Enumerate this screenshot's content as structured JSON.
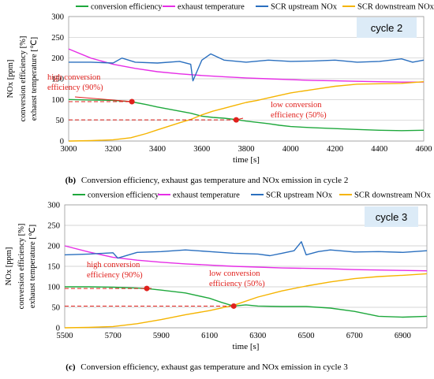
{
  "chart_data": [
    {
      "type": "line",
      "subtitle": "cycle 2",
      "caption_prefix": "(b)",
      "caption_text": "Conversion efficiency, exhaust gas temperature and NOx emission in cycle 2",
      "xlabel": "time [s]",
      "ylabel_lines": [
        "NOx [ppm]",
        "conversion efficiency [%]",
        "exhaust temperature [℃]"
      ],
      "xlim": [
        3000,
        4600
      ],
      "ylim": [
        0,
        300
      ],
      "xticks": [
        "3000",
        "3200",
        "3400",
        "3600",
        "3800",
        "4000",
        "4200",
        "4400",
        "4600"
      ],
      "yticks": [
        "0",
        "50",
        "100",
        "150",
        "200",
        "250",
        "300"
      ],
      "grid": true,
      "legend_position": "top",
      "colors": {
        "conversion efficiency": "#1ea83c",
        "exhaust temperature": "#e62ee6",
        "SCR upstream NOx": "#2a6fbf",
        "SCR downstream NOx": "#f5b400",
        "annotation": "#e0201c"
      },
      "series": [
        {
          "name": "conversion efficiency",
          "x": [
            3000,
            3100,
            3200,
            3280,
            3350,
            3400,
            3500,
            3550,
            3600,
            3650,
            3700,
            3750,
            3800,
            3850,
            3900,
            3950,
            4000,
            4100,
            4200,
            4300,
            4400,
            4500,
            4600
          ],
          "y": [
            100,
            99,
            98,
            95,
            88,
            82,
            72,
            67,
            60,
            57,
            55,
            52,
            48,
            45,
            42,
            38,
            35,
            32,
            30,
            28,
            26,
            25,
            26
          ]
        },
        {
          "name": "exhaust temperature",
          "x": [
            3000,
            3100,
            3200,
            3300,
            3400,
            3500,
            3600,
            3700,
            3800,
            3900,
            4000,
            4100,
            4200,
            4300,
            4400,
            4500,
            4600
          ],
          "y": [
            222,
            200,
            185,
            175,
            167,
            162,
            158,
            155,
            152,
            150,
            148,
            146,
            145,
            144,
            143,
            142,
            142
          ]
        },
        {
          "name": "SCR upstream NOx",
          "x": [
            3000,
            3100,
            3200,
            3240,
            3300,
            3400,
            3500,
            3550,
            3560,
            3600,
            3640,
            3700,
            3800,
            3900,
            4000,
            4100,
            4200,
            4300,
            4400,
            4500,
            4550,
            4600
          ],
          "y": [
            190,
            190,
            188,
            200,
            190,
            188,
            192,
            185,
            145,
            195,
            210,
            195,
            190,
            195,
            192,
            193,
            195,
            190,
            192,
            198,
            190,
            195
          ]
        },
        {
          "name": "SCR downstream NOx",
          "x": [
            3000,
            3100,
            3200,
            3280,
            3350,
            3400,
            3500,
            3550,
            3600,
            3650,
            3700,
            3750,
            3800,
            3850,
            3900,
            3950,
            4000,
            4100,
            4200,
            4300,
            4400,
            4500,
            4600
          ],
          "y": [
            0,
            1,
            3,
            8,
            18,
            27,
            44,
            52,
            63,
            72,
            79,
            86,
            93,
            98,
            104,
            110,
            116,
            124,
            132,
            137,
            138,
            139,
            143
          ]
        }
      ],
      "annotations": [
        {
          "text_lines": [
            "high conversion",
            "efficiency (90%)"
          ],
          "point": [
            3285,
            95
          ]
        },
        {
          "text_lines": [
            "low conversion",
            "efficiency (50%)"
          ],
          "point": [
            3755,
            51
          ]
        }
      ]
    },
    {
      "type": "line",
      "subtitle": "cycle 3",
      "caption_prefix": "(c)",
      "caption_text": "Conversion efficiency, exhaust gas temperature and NOx emission in cycle 3",
      "xlabel": "time [s]",
      "ylabel_lines": [
        "NOx [ppm]",
        "conversion efficiency [%]",
        "exhaust temperature [℃]"
      ],
      "xlim": [
        5500,
        7000
      ],
      "ylim": [
        0,
        300
      ],
      "xticks": [
        "5500",
        "5700",
        "5900",
        "6100",
        "6300",
        "6500",
        "6700",
        "6900"
      ],
      "yticks": [
        "0",
        "50",
        "100",
        "150",
        "200",
        "250",
        "300"
      ],
      "grid": true,
      "legend_position": "top",
      "colors": {
        "conversion efficiency": "#1ea83c",
        "exhaust temperature": "#e62ee6",
        "SCR upstream NOx": "#2a6fbf",
        "SCR downstream NOx": "#f5b400",
        "annotation": "#e0201c"
      },
      "series": [
        {
          "name": "conversion efficiency",
          "x": [
            5500,
            5600,
            5700,
            5800,
            5850,
            5900,
            6000,
            6100,
            6150,
            6200,
            6250,
            6300,
            6400,
            6500,
            6600,
            6700,
            6800,
            6900,
            7000
          ],
          "y": [
            100,
            100,
            99,
            97,
            95,
            92,
            85,
            72,
            62,
            53,
            56,
            53,
            52,
            52,
            48,
            40,
            28,
            26,
            28
          ]
        },
        {
          "name": "exhaust temperature",
          "x": [
            5500,
            5600,
            5700,
            5800,
            5900,
            6000,
            6100,
            6200,
            6300,
            6400,
            6500,
            6600,
            6700,
            6800,
            6900,
            7000
          ],
          "y": [
            200,
            185,
            172,
            165,
            160,
            156,
            153,
            150,
            148,
            146,
            145,
            144,
            142,
            141,
            140,
            139
          ]
        },
        {
          "name": "SCR upstream NOx",
          "x": [
            5500,
            5600,
            5700,
            5720,
            5800,
            5900,
            6000,
            6100,
            6200,
            6300,
            6350,
            6400,
            6450,
            6480,
            6500,
            6550,
            6600,
            6700,
            6800,
            6900,
            7000
          ],
          "y": [
            178,
            180,
            183,
            170,
            184,
            186,
            190,
            186,
            182,
            180,
            176,
            182,
            188,
            210,
            178,
            186,
            190,
            185,
            186,
            184,
            188
          ]
        },
        {
          "name": "SCR downstream NOx",
          "x": [
            5500,
            5600,
            5700,
            5800,
            5900,
            6000,
            6100,
            6200,
            6300,
            6400,
            6500,
            6600,
            6700,
            6800,
            6900,
            7000
          ],
          "y": [
            0,
            1,
            3,
            10,
            20,
            32,
            42,
            55,
            75,
            90,
            102,
            112,
            120,
            125,
            128,
            132
          ]
        }
      ],
      "annotations": [
        {
          "text_lines": [
            "high conversion",
            "efficiency (90%)"
          ],
          "point": [
            5840,
            96
          ]
        },
        {
          "text_lines": [
            "low conversion",
            "efficiency (50%)"
          ],
          "point": [
            6200,
            53
          ]
        }
      ]
    }
  ]
}
